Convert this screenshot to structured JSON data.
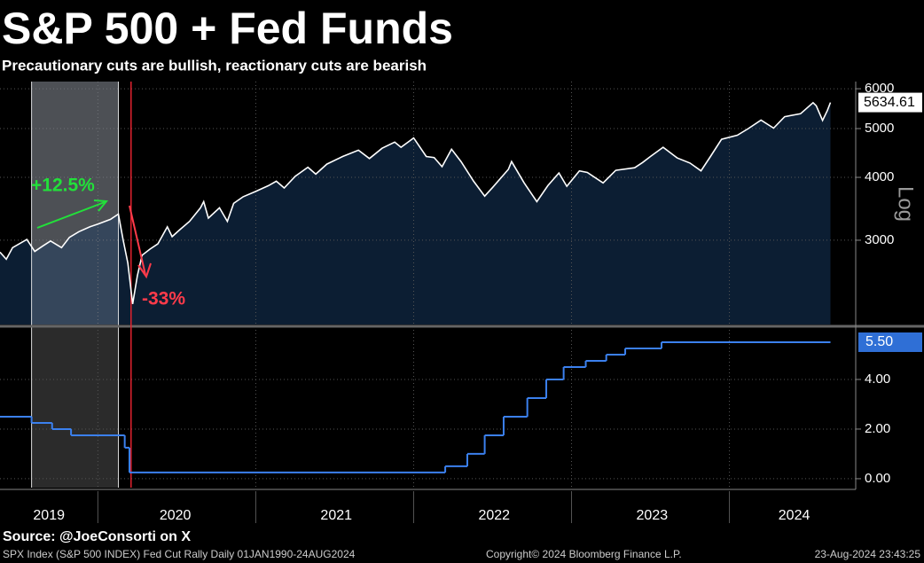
{
  "header": {
    "title": "S&P 500 + Fed Funds",
    "subtitle": "Precautionary cuts are bullish, reactionary cuts are bearish"
  },
  "chart_data": [
    {
      "type": "area",
      "name": "SPX Index",
      "color": "#ffffff",
      "fill": "#0c1e33",
      "log": true,
      "scale_label": "Log",
      "x": [
        2019.38,
        2019.42,
        2019.46,
        2019.55,
        2019.6,
        2019.65,
        2019.7,
        2019.77,
        2019.82,
        2019.88,
        2019.95,
        2020.0,
        2020.08,
        2020.13,
        2020.16,
        2020.19,
        2020.22,
        2020.25,
        2020.28,
        2020.33,
        2020.38,
        2020.44,
        2020.47,
        2020.52,
        2020.58,
        2020.65,
        2020.67,
        2020.7,
        2020.77,
        2020.82,
        2020.86,
        2020.92,
        2021.0,
        2021.08,
        2021.13,
        2021.18,
        2021.25,
        2021.33,
        2021.38,
        2021.45,
        2021.55,
        2021.65,
        2021.72,
        2021.8,
        2021.88,
        2021.92,
        2022.0,
        2022.08,
        2022.13,
        2022.18,
        2022.24,
        2022.3,
        2022.38,
        2022.45,
        2022.5,
        2022.6,
        2022.62,
        2022.7,
        2022.78,
        2022.85,
        2022.92,
        2022.97,
        2023.05,
        2023.1,
        2023.2,
        2023.28,
        2023.4,
        2023.45,
        2023.5,
        2023.58,
        2023.67,
        2023.75,
        2023.82,
        2023.88,
        2023.95,
        2024.05,
        2024.12,
        2024.2,
        2024.28,
        2024.35,
        2024.45,
        2024.53,
        2024.55,
        2024.59,
        2024.62,
        2024.64
      ],
      "values": [
        2840,
        2750,
        2900,
        3010,
        2850,
        2920,
        2990,
        2900,
        3040,
        3120,
        3190,
        3230,
        3300,
        3380,
        3000,
        2700,
        2240,
        2550,
        2800,
        2880,
        2950,
        3190,
        3050,
        3150,
        3270,
        3480,
        3580,
        3320,
        3480,
        3270,
        3550,
        3660,
        3750,
        3850,
        3930,
        3810,
        4020,
        4190,
        4060,
        4250,
        4400,
        4530,
        4360,
        4570,
        4700,
        4590,
        4790,
        4400,
        4380,
        4200,
        4550,
        4300,
        3930,
        3670,
        3820,
        4150,
        4300,
        3900,
        3580,
        3850,
        4080,
        3840,
        4120,
        4090,
        3900,
        4130,
        4180,
        4280,
        4400,
        4590,
        4370,
        4270,
        4120,
        4400,
        4760,
        4850,
        5000,
        5200,
        5010,
        5280,
        5350,
        5630,
        5550,
        5190,
        5430,
        5634.61
      ],
      "ylim": [
        2040,
        6200
      ],
      "yticks": [
        3000,
        4000,
        5000,
        6000
      ],
      "grid": true,
      "highlight": [
        2019.58,
        2020.13
      ],
      "marker_line": 2020.21,
      "annotations": [
        {
          "text": "+12.5%",
          "color": "#22e03a"
        },
        {
          "text": "-33%",
          "color": "#ff3b4a"
        }
      ]
    },
    {
      "type": "step",
      "name": "Fed Funds",
      "color": "#3b80ee",
      "x": [
        2019.38,
        2019.58,
        2019.71,
        2019.83,
        2020.17,
        2020.2,
        2022.2,
        2022.34,
        2022.45,
        2022.57,
        2022.72,
        2022.84,
        2022.95,
        2023.09,
        2023.22,
        2023.34,
        2023.57,
        2024.64
      ],
      "values": [
        2.5,
        2.25,
        2.0,
        1.75,
        1.25,
        0.25,
        0.5,
        1.0,
        1.75,
        2.5,
        3.25,
        4.0,
        4.5,
        4.75,
        5.0,
        5.25,
        5.5,
        5.5
      ],
      "last_value_label": "5.50",
      "ylim": [
        -0.36,
        6.0
      ],
      "yticks": [
        {
          "value": 0,
          "label": "0.00"
        },
        {
          "value": 2,
          "label": "2.00"
        },
        {
          "value": 4,
          "label": "4.00"
        }
      ],
      "grid": true,
      "xlim": [
        2019.38,
        2024.8
      ],
      "xgrid": [
        2020,
        2021,
        2022,
        2023,
        2024
      ],
      "xticks": [
        {
          "value": 2019.69,
          "label": "2019"
        },
        {
          "value": 2020.49,
          "label": "2020"
        },
        {
          "value": 2021.51,
          "label": "2021"
        },
        {
          "value": 2022.51,
          "label": "2022"
        },
        {
          "value": 2023.51,
          "label": "2023"
        },
        {
          "value": 2024.41,
          "label": "2024"
        }
      ]
    }
  ],
  "footer": {
    "source": "Source: @JoeConsorti on X",
    "description": "SPX Index (S&P 500 INDEX) Fed Cut Rally  Daily 01JAN1990-24AUG2024",
    "copyright": "Copyright© 2024 Bloomberg Finance L.P.",
    "timestamp": "23-Aug-2024 23:43:25"
  }
}
